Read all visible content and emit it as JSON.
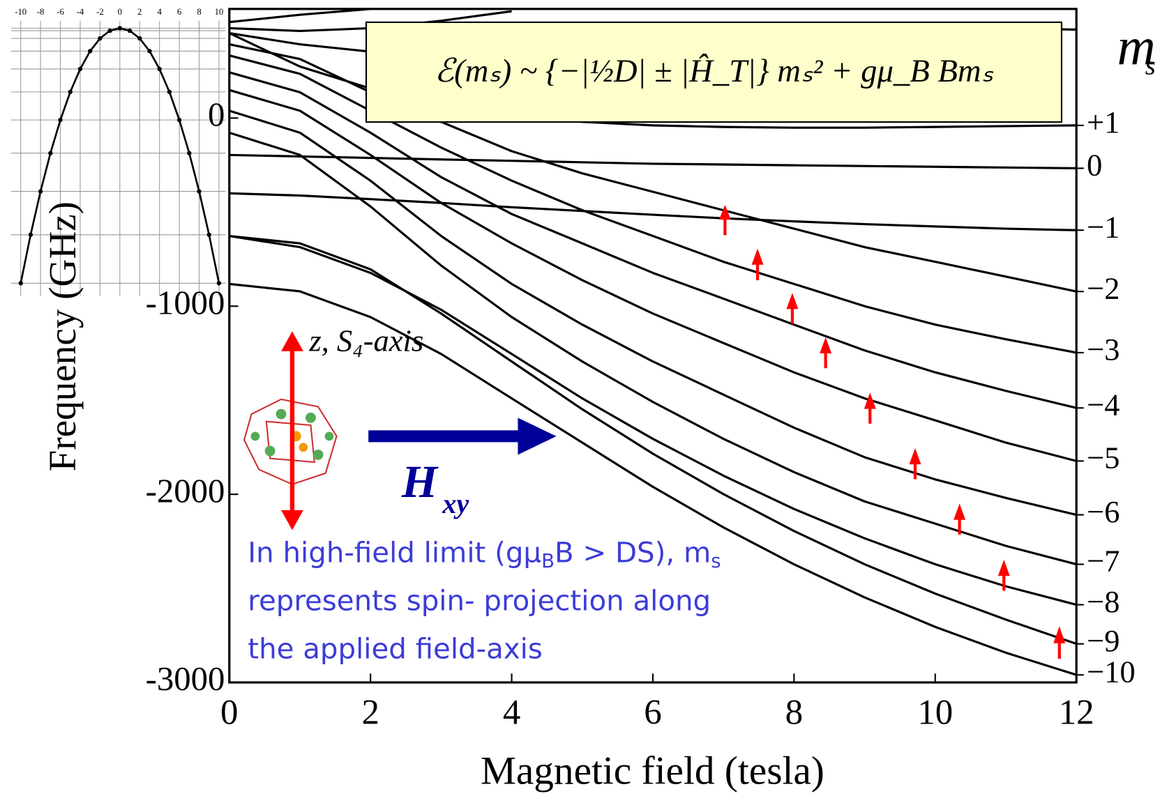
{
  "chart_data": [
    {
      "type": "line",
      "xlabel": "Magnetic field (tesla)",
      "ylabel": "Frequency (GHz)",
      "x": [
        0,
        1,
        2,
        3,
        4,
        5,
        6,
        7,
        8,
        9,
        10,
        11,
        12
      ],
      "xlim": [
        0,
        12
      ],
      "xticks": [
        0,
        2,
        4,
        6,
        8,
        10,
        12
      ],
      "ylim": [
        -3000,
        580
      ],
      "yticks": [
        -3000,
        -2000,
        -1000,
        0
      ],
      "series": [
        {
          "name": "+1",
          "color": "#000000",
          "values": [
            451,
            274,
            157,
            78,
            20,
            -20,
            -39,
            -47,
            -51,
            -51,
            -47,
            -43,
            -39
          ]
        },
        {
          "name": "0",
          "color": "#000000",
          "values": [
            -196,
            -204,
            -212,
            -220,
            -227,
            -235,
            -243,
            -247,
            -251,
            -255,
            -259,
            -263,
            -267
          ]
        },
        {
          "name": "−1",
          "color": "#000000",
          "values": [
            -400,
            -412,
            -431,
            -451,
            -474,
            -494,
            -514,
            -533,
            -549,
            -564,
            -576,
            -588,
            -596
          ]
        },
        {
          "name": "−2",
          "color": "#000000",
          "values": [
            392,
            314,
            137,
            -20,
            -176,
            -294,
            -392,
            -490,
            -588,
            -686,
            -764,
            -843,
            -922
          ]
        },
        {
          "name": "−3",
          "color": "#000000",
          "values": [
            333,
            235,
            39,
            -157,
            -333,
            -490,
            -627,
            -764,
            -882,
            -1000,
            -1098,
            -1176,
            -1247
          ]
        },
        {
          "name": "−4",
          "color": "#000000",
          "values": [
            243,
            137,
            -78,
            -314,
            -510,
            -666,
            -823,
            -960,
            -1098,
            -1235,
            -1352,
            -1450,
            -1541
          ]
        },
        {
          "name": "−5",
          "color": "#000000",
          "values": [
            149,
            39,
            -196,
            -451,
            -666,
            -862,
            -1039,
            -1196,
            -1352,
            -1490,
            -1607,
            -1725,
            -1823
          ]
        },
        {
          "name": "−6",
          "color": "#000000",
          "values": [
            39,
            -78,
            -333,
            -627,
            -882,
            -1098,
            -1294,
            -1470,
            -1646,
            -1803,
            -1921,
            -2019,
            -2109
          ]
        },
        {
          "name": "−7",
          "color": "#000000",
          "values": [
            -78,
            -196,
            -470,
            -784,
            -1058,
            -1294,
            -1509,
            -1705,
            -1882,
            -2038,
            -2156,
            -2274,
            -2372
          ]
        },
        {
          "name": "−8",
          "color": "#000000",
          "values": [
            -627,
            -686,
            -823,
            -1019,
            -1254,
            -1490,
            -1705,
            -1901,
            -2078,
            -2234,
            -2372,
            -2489,
            -2587
          ]
        },
        {
          "name": "−9",
          "color": "#000000",
          "values": [
            -627,
            -666,
            -804,
            -1039,
            -1294,
            -1548,
            -1784,
            -1999,
            -2195,
            -2372,
            -2528,
            -2666,
            -2795
          ]
        },
        {
          "name": "−10",
          "color": "#000000",
          "values": [
            -882,
            -921,
            -1058,
            -1254,
            -1490,
            -1725,
            -1960,
            -2176,
            -2372,
            -2548,
            -2705,
            -2842,
            -2960
          ]
        },
        {
          "color": "#000000",
          "values": [
            510,
            549,
            580,
            null,
            null,
            null,
            null,
            null,
            null,
            null,
            null,
            null,
            null
          ]
        },
        {
          "color": "#000000",
          "values": [
            478,
            463,
            478,
            517,
            568,
            null,
            null,
            null,
            null,
            null,
            null,
            null,
            null
          ]
        },
        {
          "color": "#000000",
          "values": [
            451,
            392,
            353,
            345,
            353,
            368,
            392,
            412,
            431,
            451,
            470,
            478,
            470
          ]
        }
      ],
      "y2title": [
        "m",
        "s"
      ],
      "equation": "ℰ(mₛ) ~ {−|½D| ± |Ĥ_T|} mₛ² + gμ_B Bmₛ",
      "axis_note": "z,  S₄-axis",
      "field_label": [
        "H",
        "xy"
      ],
      "note_lines": [
        [
          "In high-field limit (gμ",
          "B",
          "B > DS), m",
          "s"
        ],
        [
          "represents spin- projection along"
        ],
        [
          "the applied field-axis"
        ]
      ]
    },
    {
      "type": "scatter-line",
      "x": [
        -10,
        -9,
        -8,
        -7,
        -6,
        -5,
        -4,
        -3,
        -2,
        -1,
        0,
        1,
        2,
        3,
        4,
        5,
        6,
        7,
        8,
        9,
        10
      ],
      "values": [
        -100,
        -81,
        -64,
        -49,
        -36,
        -25,
        -16,
        -9,
        -4,
        -1,
        0,
        -1,
        -4,
        -9,
        -16,
        -25,
        -36,
        -49,
        -64,
        -81,
        -100
      ],
      "xlim": [
        -10,
        10
      ],
      "xticks": [
        -10,
        -8,
        -6,
        -4,
        -2,
        0,
        2,
        4,
        6,
        8,
        10
      ],
      "ylim": [
        -100,
        0
      ],
      "color": "#000000"
    }
  ]
}
